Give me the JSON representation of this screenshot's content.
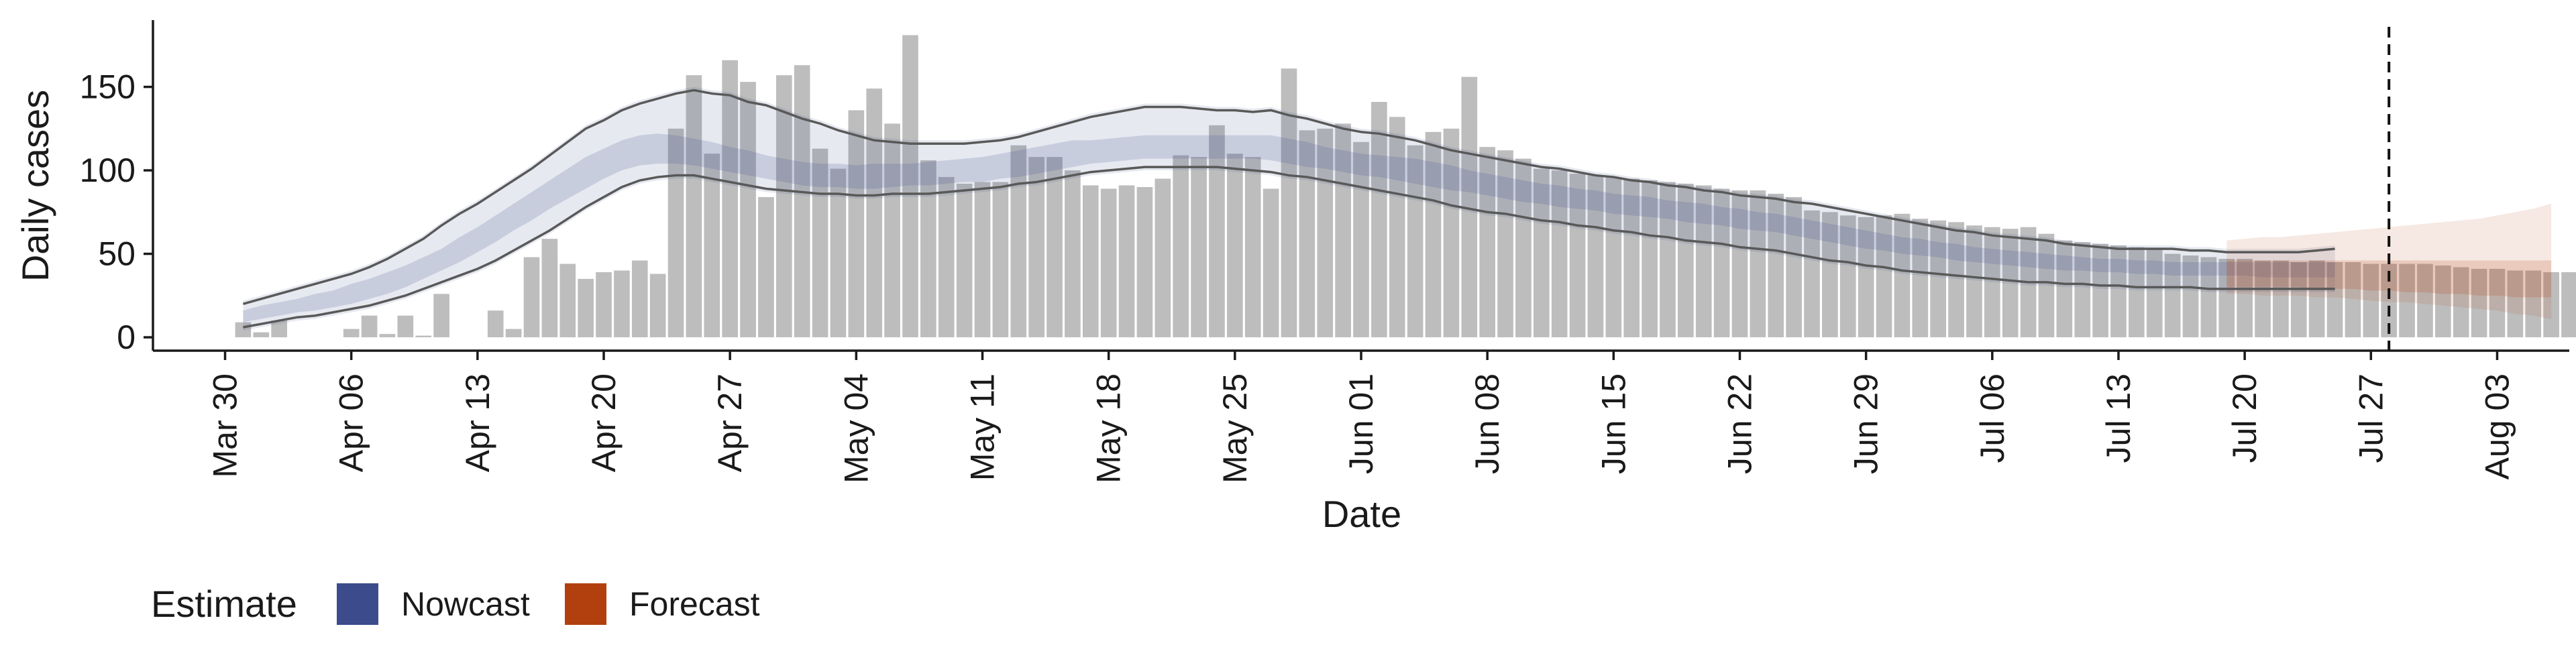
{
  "chart_data": {
    "type": "bar",
    "xlabel": "Date",
    "ylabel": "Daily cases",
    "x_range": [
      "2020-03-26",
      "2020-08-07"
    ],
    "y_range": [
      -8,
      190
    ],
    "y_ticks": [
      0,
      50,
      100,
      150
    ],
    "x_tick_labels": [
      "Mar 30",
      "Apr 06",
      "Apr 13",
      "Apr 20",
      "Apr 27",
      "May 04",
      "May 11",
      "May 18",
      "May 25",
      "Jun 01",
      "Jun 08",
      "Jun 15",
      "Jun 22",
      "Jun 29",
      "Jul 06",
      "Jul 13",
      "Jul 20",
      "Jul 27",
      "Aug 03"
    ],
    "x_tick_dates": [
      "2020-03-30",
      "2020-04-06",
      "2020-04-13",
      "2020-04-20",
      "2020-04-27",
      "2020-05-04",
      "2020-05-11",
      "2020-05-18",
      "2020-05-25",
      "2020-06-01",
      "2020-06-08",
      "2020-06-15",
      "2020-06-22",
      "2020-06-29",
      "2020-07-06",
      "2020-07-13",
      "2020-07-20",
      "2020-07-27",
      "2020-08-03"
    ],
    "reference_line_date": "2020-07-28",
    "bars": {
      "start_date": "2020-03-31",
      "values": [
        9,
        3,
        10,
        0,
        0,
        0,
        5,
        13,
        2,
        13,
        1,
        26,
        0,
        0,
        16,
        5,
        48,
        59,
        44,
        35,
        39,
        40,
        46,
        38,
        125,
        157,
        110,
        166,
        153,
        84,
        157,
        163,
        113,
        101,
        136,
        149,
        128,
        181,
        106,
        96,
        92,
        93,
        93,
        115,
        108,
        108,
        100,
        91,
        89,
        91,
        90,
        95,
        109,
        108,
        127,
        110,
        108,
        89,
        161,
        124,
        125,
        128,
        117,
        141,
        132,
        115,
        123,
        125,
        156,
        114,
        112,
        107,
        101,
        100,
        98,
        97,
        96,
        95,
        94,
        93,
        92,
        91,
        89,
        88,
        88,
        86,
        84,
        76,
        75,
        73,
        72,
        73,
        74,
        71,
        70,
        69,
        67,
        66,
        65,
        66,
        62,
        58,
        57,
        56,
        55,
        54,
        53,
        50,
        49,
        48,
        47,
        47,
        46,
        46,
        45,
        46,
        45,
        45,
        44,
        44,
        44,
        44,
        43,
        42,
        41,
        41,
        40,
        40,
        39,
        39,
        40,
        40
      ]
    },
    "series": [
      {
        "name": "Nowcast",
        "color": "#3b4b8c",
        "start_date": "2020-03-31",
        "outer_upper": [
          22,
          25,
          28,
          31,
          34,
          37,
          40,
          44,
          49,
          55,
          61,
          69,
          76,
          82,
          89,
          96,
          103,
          111,
          119,
          127,
          132,
          138,
          142,
          145,
          148,
          150,
          148,
          147,
          143,
          141,
          137,
          133,
          130,
          126,
          123,
          120,
          119,
          118,
          118,
          118,
          118,
          119,
          120,
          122,
          125,
          128,
          131,
          134,
          136,
          138,
          140,
          140,
          140,
          139,
          138,
          138,
          137,
          138,
          135,
          133,
          130,
          127,
          125,
          124,
          122,
          120,
          117,
          114,
          112,
          110,
          108,
          106,
          104,
          103,
          101,
          99,
          98,
          96,
          95,
          93,
          92,
          90,
          89,
          87,
          86,
          85,
          83,
          82,
          80,
          78,
          76,
          74,
          72,
          70,
          68,
          66,
          65,
          63,
          62,
          61,
          60,
          58,
          57,
          56,
          55,
          55,
          55,
          55,
          54,
          54,
          53,
          53,
          53,
          53,
          53,
          54,
          55
        ],
        "upper": [
          16,
          19,
          21,
          23,
          26,
          28,
          32,
          35,
          39,
          43,
          48,
          53,
          60,
          66,
          73,
          80,
          87,
          94,
          101,
          108,
          113,
          118,
          121,
          122,
          121,
          119,
          117,
          114,
          112,
          109,
          107,
          105,
          104,
          104,
          103,
          104,
          104,
          104,
          105,
          106,
          107,
          108,
          110,
          112,
          114,
          116,
          118,
          118,
          119,
          120,
          121,
          121,
          121,
          121,
          121,
          121,
          121,
          121,
          119,
          117,
          114,
          112,
          110,
          109,
          108,
          107,
          105,
          103,
          100,
          98,
          96,
          94,
          92,
          91,
          89,
          88,
          86,
          85,
          84,
          82,
          81,
          80,
          78,
          77,
          75,
          74,
          72,
          70,
          68,
          66,
          64,
          62,
          60,
          59,
          57,
          56,
          54,
          53,
          52,
          51,
          50,
          49,
          48,
          47,
          47,
          46,
          46,
          45,
          45,
          45,
          45,
          45,
          45,
          45,
          45,
          45,
          45
        ],
        "lower": [
          9,
          11,
          13,
          15,
          16,
          18,
          20,
          23,
          26,
          30,
          35,
          40,
          45,
          51,
          57,
          64,
          70,
          77,
          83,
          89,
          95,
          100,
          103,
          104,
          104,
          103,
          101,
          99,
          97,
          95,
          93,
          91,
          90,
          90,
          89,
          89,
          90,
          91,
          91,
          92,
          93,
          93,
          95,
          96,
          98,
          100,
          102,
          104,
          105,
          106,
          107,
          107,
          107,
          107,
          107,
          107,
          107,
          106,
          104,
          102,
          101,
          99,
          97,
          96,
          94,
          92,
          90,
          88,
          87,
          85,
          83,
          81,
          80,
          78,
          77,
          76,
          74,
          73,
          72,
          71,
          69,
          68,
          67,
          65,
          64,
          63,
          61,
          59,
          57,
          55,
          53,
          52,
          50,
          49,
          48,
          46,
          45,
          44,
          43,
          42,
          41,
          40,
          40,
          39,
          39,
          38,
          38,
          37,
          37,
          37,
          37,
          37,
          36,
          36,
          36,
          36,
          36
        ],
        "outer_lower": [
          4,
          6,
          8,
          10,
          11,
          13,
          15,
          17,
          20,
          23,
          27,
          31,
          35,
          39,
          44,
          50,
          56,
          62,
          69,
          76,
          82,
          88,
          92,
          94,
          95,
          95,
          93,
          91,
          89,
          87,
          86,
          85,
          84,
          84,
          83,
          83,
          84,
          84,
          84,
          85,
          86,
          87,
          88,
          90,
          91,
          93,
          95,
          97,
          98,
          99,
          100,
          100,
          100,
          100,
          100,
          99,
          98,
          97,
          95,
          94,
          92,
          90,
          88,
          86,
          84,
          82,
          80,
          77,
          75,
          73,
          72,
          70,
          68,
          67,
          65,
          64,
          62,
          61,
          59,
          58,
          56,
          55,
          54,
          52,
          51,
          50,
          48,
          46,
          44,
          43,
          41,
          40,
          38,
          37,
          36,
          35,
          34,
          33,
          32,
          31,
          31,
          30,
          30,
          29,
          29,
          28,
          28,
          28,
          28,
          27,
          27,
          27,
          27,
          27,
          27,
          27,
          27
        ],
        "line_upper": [
          20,
          23,
          26,
          29,
          32,
          35,
          38,
          42,
          47,
          53,
          59,
          67,
          74,
          80,
          87,
          94,
          101,
          109,
          117,
          125,
          130,
          136,
          140,
          143,
          146,
          148,
          146,
          145,
          141,
          139,
          135,
          131,
          128,
          124,
          121,
          118,
          117,
          116,
          116,
          116,
          116,
          117,
          118,
          120,
          123,
          126,
          129,
          132,
          134,
          136,
          138,
          138,
          138,
          137,
          136,
          136,
          135,
          136,
          133,
          131,
          128,
          125,
          123,
          122,
          120,
          118,
          115,
          112,
          110,
          108,
          106,
          104,
          102,
          101,
          99,
          97,
          96,
          94,
          93,
          91,
          90,
          88,
          87,
          85,
          84,
          83,
          81,
          80,
          78,
          76,
          74,
          72,
          70,
          68,
          66,
          64,
          63,
          61,
          60,
          59,
          58,
          56,
          55,
          54,
          53,
          53,
          53,
          53,
          52,
          52,
          51,
          51,
          51,
          51,
          51,
          52,
          53
        ],
        "line_lower": [
          6,
          8,
          10,
          12,
          13,
          15,
          17,
          19,
          22,
          25,
          29,
          33,
          37,
          41,
          46,
          52,
          58,
          64,
          71,
          78,
          84,
          90,
          94,
          96,
          97,
          97,
          95,
          93,
          91,
          89,
          88,
          87,
          86,
          86,
          85,
          85,
          86,
          86,
          86,
          87,
          88,
          89,
          90,
          92,
          93,
          95,
          97,
          99,
          100,
          101,
          102,
          102,
          102,
          102,
          102,
          101,
          100,
          99,
          97,
          96,
          94,
          92,
          90,
          88,
          86,
          84,
          82,
          79,
          77,
          75,
          74,
          72,
          70,
          69,
          67,
          66,
          64,
          63,
          61,
          60,
          58,
          57,
          56,
          54,
          53,
          52,
          50,
          48,
          46,
          45,
          43,
          42,
          40,
          39,
          38,
          37,
          36,
          35,
          34,
          33,
          33,
          32,
          32,
          31,
          31,
          30,
          30,
          30,
          30,
          29,
          29,
          29,
          29,
          29,
          29,
          29,
          29
        ]
      },
      {
        "name": "Forecast",
        "color": "#b2400f",
        "start_date": "2020-07-19",
        "outer_upper": [
          58,
          59,
          60,
          60,
          61,
          62,
          63,
          64,
          65,
          66,
          67,
          68,
          69,
          70,
          71,
          73,
          75,
          77,
          80
        ],
        "upper": [
          46,
          46,
          46,
          46,
          46,
          46,
          46,
          46,
          46,
          46,
          46,
          46,
          46,
          46,
          46,
          46,
          46,
          46,
          46
        ],
        "lower": [
          30,
          30,
          30,
          30,
          30,
          29,
          29,
          29,
          28,
          28,
          27,
          27,
          26,
          26,
          25,
          25,
          24,
          24,
          24
        ],
        "outer_lower": [
          26,
          26,
          25,
          25,
          25,
          24,
          24,
          23,
          22,
          21,
          21,
          20,
          19,
          18,
          17,
          16,
          14,
          13,
          11
        ]
      }
    ],
    "legend": {
      "title": "Estimate",
      "position": "bottom-left",
      "items": [
        {
          "label": "Nowcast",
          "color": "#3b4b8c"
        },
        {
          "label": "Forecast",
          "color": "#b2400f"
        }
      ]
    }
  }
}
